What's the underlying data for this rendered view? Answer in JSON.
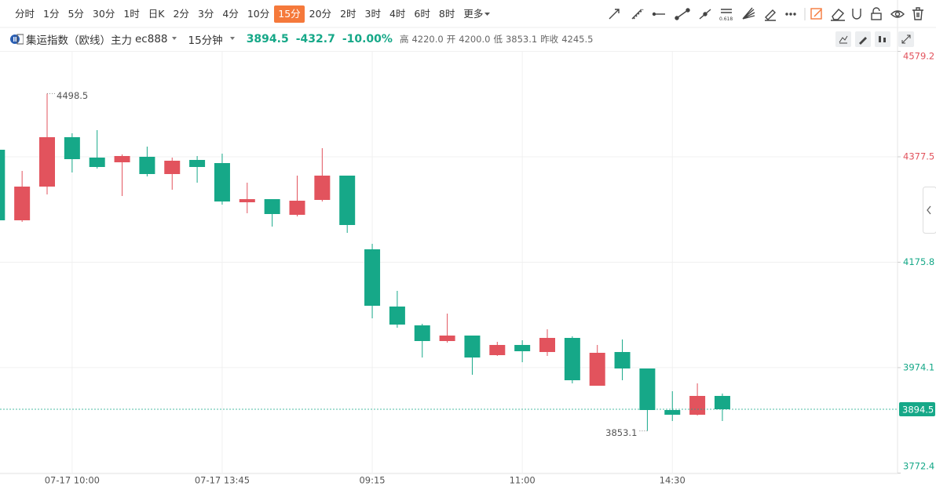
{
  "toolbar": {
    "intervals": [
      "分时",
      "1分",
      "5分",
      "30分",
      "1时",
      "日K",
      "2分",
      "3分",
      "4分",
      "10分",
      "15分",
      "20分",
      "2时",
      "3时",
      "4时",
      "6时",
      "8时"
    ],
    "more": "更多"
  },
  "header": {
    "name": "集运指数（欧线）主力",
    "code": "ec888",
    "period": "15分钟",
    "price": "3894.5",
    "change": "-432.7",
    "change_pct": "-10.00%",
    "stats": [
      {
        "label": "高",
        "value": "4220.0"
      },
      {
        "label": "开",
        "value": "4200.0"
      },
      {
        "label": "低",
        "value": "3853.1"
      },
      {
        "label": "昨收",
        "value": "4245.5"
      }
    ]
  },
  "chart_data": {
    "type": "candlestick",
    "categories": [
      null,
      null,
      null,
      "07-17 10:00",
      null,
      null,
      null,
      null,
      null,
      "07-17 13:45",
      null,
      null,
      null,
      null,
      null,
      "09:15",
      null,
      null,
      null,
      null,
      null,
      "11:00",
      null,
      null,
      null,
      null,
      null,
      "14:30",
      null,
      null
    ],
    "open": [
      4391,
      4256,
      4320.5,
      4415,
      4376,
      4367,
      4377.5,
      4344.5,
      4371.5,
      4365.5,
      4290.5,
      4296.5,
      4266.5,
      4295,
      4341.5,
      4200.5,
      4091,
      4055,
      4025,
      4035.5,
      3998,
      4017.5,
      4004,
      4031,
      3939.5,
      4004,
      3972.5,
      3893,
      3884,
      3920
    ],
    "high": [
      4391,
      4350.5,
      4498.5,
      4422.5,
      4428.5,
      4382,
      4397,
      4376,
      4379,
      4383.5,
      4328,
      4296.5,
      4341.5,
      4394,
      4341.5,
      4211,
      4121,
      4058,
      4077.5,
      4035.5,
      4023.5,
      4026.5,
      4047.5,
      4034,
      4017.5,
      4028,
      3972.5,
      3929,
      3944,
      3924.5
    ],
    "low": [
      4256,
      4253,
      4305.5,
      4347.5,
      4355,
      4302.5,
      4340,
      4314.5,
      4328,
      4286,
      4269.5,
      4244,
      4263.5,
      4292,
      4232,
      4068.5,
      4050.5,
      3993.5,
      4022,
      3960.5,
      3996.5,
      3984.5,
      3996.5,
      3944,
      3939.5,
      3950,
      3853.1,
      3872,
      3882.5,
      3872
    ],
    "close": [
      4256,
      4320.5,
      4415,
      4373,
      4358,
      4379,
      4344.5,
      4370,
      4358,
      4292,
      4296.5,
      4268,
      4293.5,
      4341.5,
      4247,
      4092.5,
      4056.5,
      4025,
      4035.5,
      3993.5,
      4017.5,
      4005.5,
      4031,
      3950,
      4002.5,
      3972.5,
      3893,
      3884,
      3920,
      3894.5
    ],
    "up_color": "#e2535d",
    "down_color": "#16a888",
    "ylim": [
      3771.5,
      4580
    ],
    "yticks": [
      4579.2,
      4377.5,
      4175.8,
      3974.1,
      3772.4
    ],
    "ytick_colors": [
      "#e2535d",
      "#e2535d",
      "#16a888",
      "#16a888",
      "#16a888"
    ],
    "grid": true
  }
}
